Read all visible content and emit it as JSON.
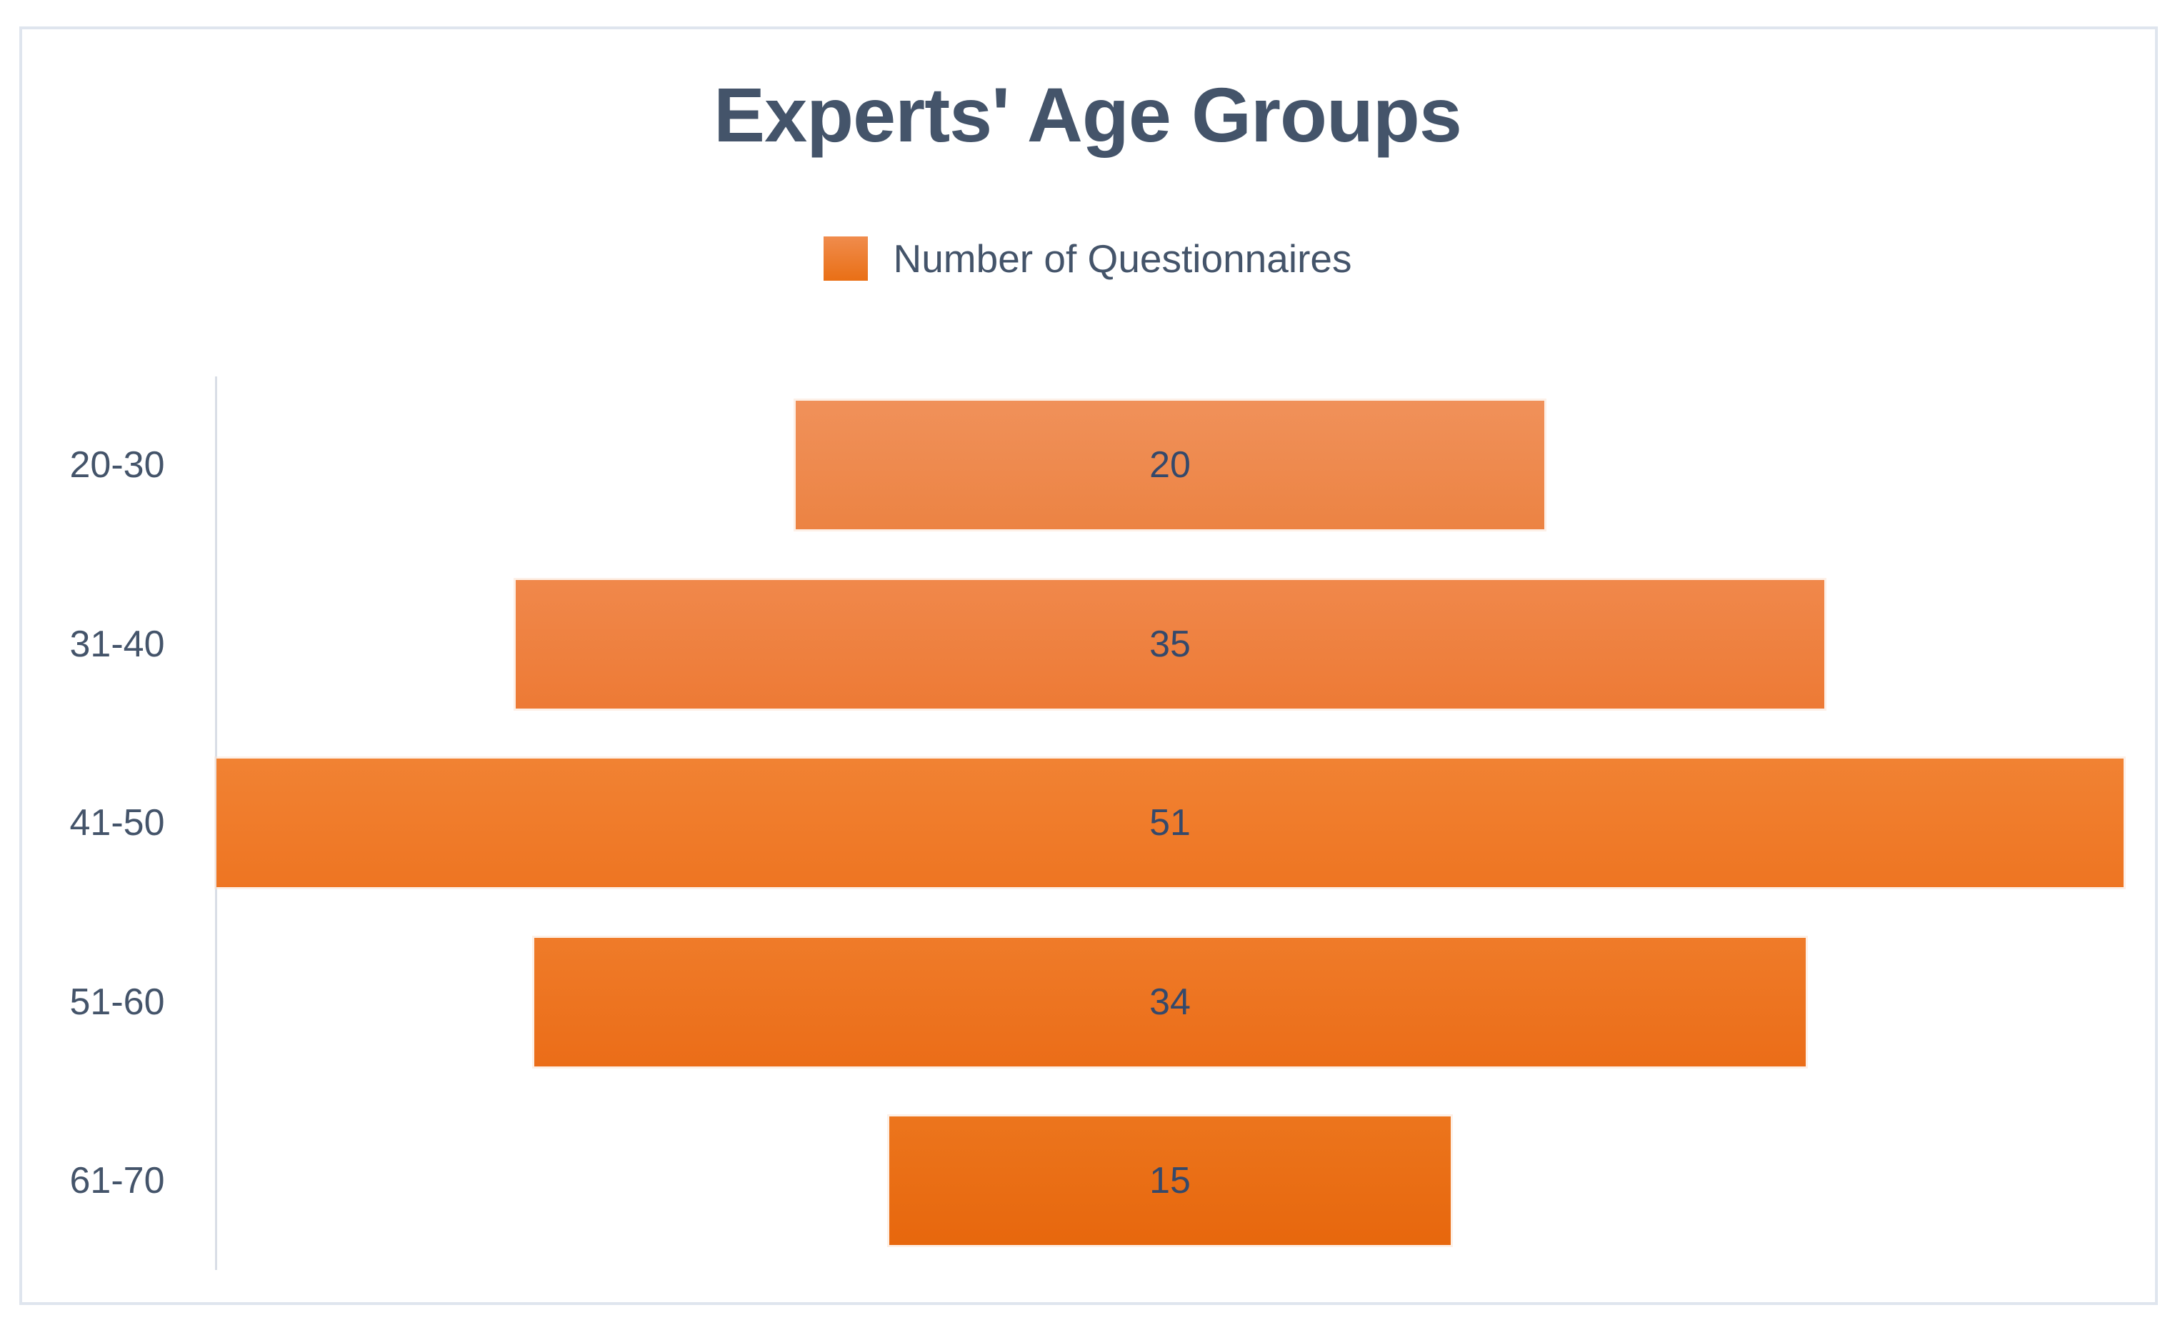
{
  "chart_data": {
    "type": "bar",
    "variant": "horizontal-centered-funnel",
    "title": "Experts' Age Groups",
    "categories": [
      "20-30",
      "31-40",
      "41-50",
      "51-60",
      "61-70"
    ],
    "series": [
      {
        "name": "Number of Questionnaires",
        "values": [
          20,
          35,
          51,
          34,
          15
        ]
      }
    ],
    "value_axis_max": 51,
    "legend_position": "top-center",
    "grid": false,
    "bar_colors": [
      {
        "top": "#F0915A",
        "bottom": "#EC8343"
      },
      {
        "top": "#F0884B",
        "bottom": "#ED7A35"
      },
      {
        "top": "#F18233",
        "bottom": "#EE7522"
      },
      {
        "top": "#EF7B29",
        "bottom": "#EB6D18"
      },
      {
        "top": "#EC751D",
        "bottom": "#E7670D"
      }
    ],
    "colors": {
      "title_text": "#44546A",
      "category_text": "#44546A",
      "value_text": "#35496B",
      "legend_text": "#44546A",
      "legend_swatch_top": "#F08C4D",
      "legend_swatch_bottom": "#E96F15",
      "axis_line": "#D9DEE6",
      "frame_border": "#DFE5EE",
      "background": "#FFFFFF"
    }
  }
}
